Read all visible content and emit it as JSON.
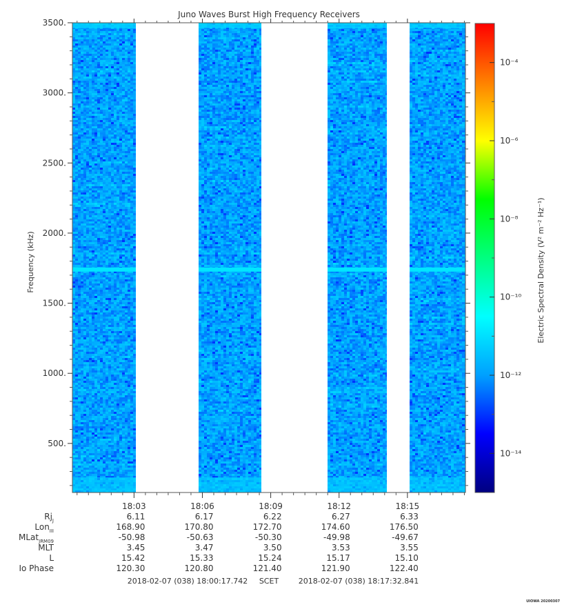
{
  "chart_data": {
    "type": "heatmap",
    "title": "Juno Waves Burst High Frequency Receivers",
    "ylabel": "Frequency (kHz)",
    "ylim": [
      150,
      3500
    ],
    "yticks": [
      500,
      1000,
      1500,
      2000,
      2500,
      3000,
      3500
    ],
    "ytick_labels": [
      "500.",
      "1000.",
      "1500.",
      "2000.",
      "2500.",
      "3000.",
      "3500."
    ],
    "x_time_range": [
      "18:00:17.742",
      "18:17:32.841"
    ],
    "xtick_labels": [
      "18:03",
      "18:06",
      "18:09",
      "18:12",
      "18:15"
    ],
    "data_segments": [
      {
        "start": "18:00:17",
        "end": "18:03:05"
      },
      {
        "start": "18:05:50",
        "end": "18:08:35"
      },
      {
        "start": "18:11:30",
        "end": "18:14:05"
      },
      {
        "start": "18:15:05",
        "end": "18:17:32"
      }
    ],
    "persistent_emission_line_khz": 1740,
    "colorbar": {
      "label": "Electric Spectral Density (V² m⁻² Hz⁻¹)",
      "log_range": [
        -15,
        -3
      ],
      "ticks": [
        "10⁻⁴",
        "10⁻⁶",
        "10⁻⁸",
        "10⁻¹⁰",
        "10⁻¹²",
        "10⁻¹⁴"
      ],
      "tick_exponents": [
        -4,
        -6,
        -8,
        -10,
        -12,
        -14
      ],
      "colormap": [
        "#000080",
        "#0000ff",
        "#00a0ff",
        "#00ffff",
        "#00ff80",
        "#00ff00",
        "#ffff00",
        "#ff8000",
        "#ff0000"
      ]
    },
    "ephemeris": {
      "rows": [
        {
          "label": "Rj",
          "label_sub": "J",
          "values": [
            "6.11",
            "6.17",
            "6.22",
            "6.27",
            "6.33"
          ]
        },
        {
          "label": "Lon",
          "label_sub": "III",
          "values": [
            "168.90",
            "170.80",
            "172.70",
            "174.60",
            "176.50"
          ]
        },
        {
          "label": "MLat",
          "label_sub": "JRM09",
          "values": [
            "-50.98",
            "-50.63",
            "-50.30",
            "-49.98",
            "-49.67"
          ]
        },
        {
          "label": "MLT",
          "label_sub": "",
          "values": [
            "3.45",
            "3.47",
            "3.50",
            "3.53",
            "3.55"
          ]
        },
        {
          "label": "L",
          "label_sub": "",
          "values": [
            "15.42",
            "15.33",
            "15.24",
            "15.17",
            "15.10"
          ]
        },
        {
          "label": "Io Phase",
          "label_sub": "",
          "values": [
            "120.30",
            "120.80",
            "121.40",
            "121.90",
            "122.40"
          ]
        }
      ]
    },
    "time_footer": {
      "start": "2018-02-07 (038) 18:00:17.742",
      "system": "SCET",
      "end": "2018-02-07 (038) 18:17:32.841"
    },
    "stamp": "UIOWA 20200307"
  }
}
